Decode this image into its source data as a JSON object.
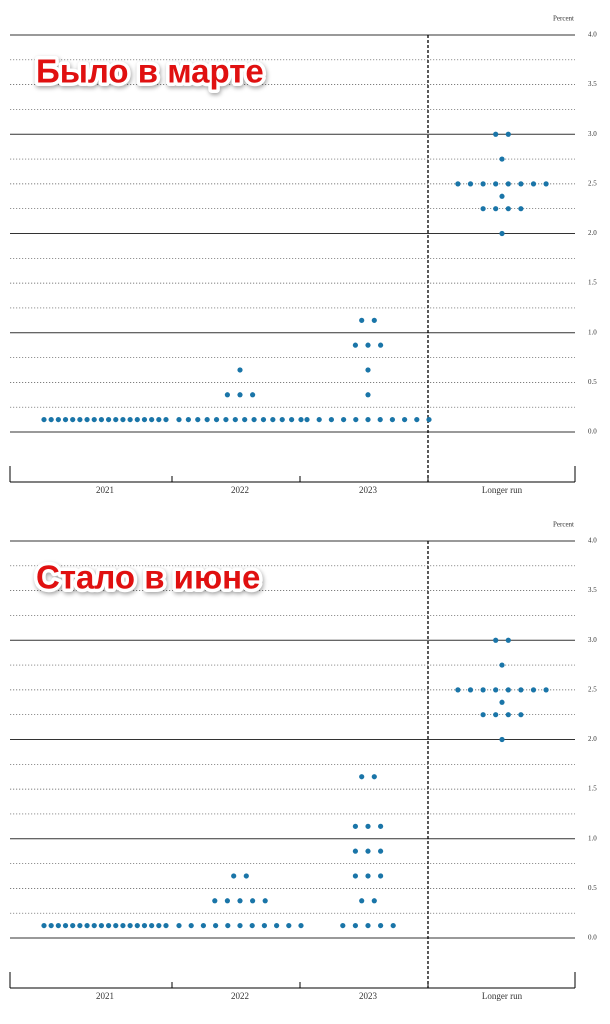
{
  "chart_data": [
    {
      "type": "dot",
      "title": "Было в марте",
      "ylabel": "Percent",
      "categories": [
        "2021",
        "2022",
        "2023",
        "Longer run"
      ],
      "values": [
        [
          0.125,
          0.125,
          0.125,
          0.125,
          0.125,
          0.125,
          0.125,
          0.125,
          0.125,
          0.125,
          0.125,
          0.125,
          0.125,
          0.125,
          0.125,
          0.125,
          0.125,
          0.125
        ],
        [
          0.125,
          0.125,
          0.125,
          0.125,
          0.125,
          0.125,
          0.125,
          0.125,
          0.125,
          0.125,
          0.125,
          0.125,
          0.125,
          0.125,
          0.375,
          0.375,
          0.375,
          0.625
        ],
        [
          0.125,
          0.125,
          0.125,
          0.125,
          0.125,
          0.125,
          0.125,
          0.125,
          0.125,
          0.125,
          0.125,
          0.375,
          0.625,
          0.875,
          0.875,
          0.875,
          1.125,
          1.125
        ],
        [
          2.0,
          2.25,
          2.25,
          2.25,
          2.25,
          2.375,
          2.5,
          2.5,
          2.5,
          2.5,
          2.5,
          2.5,
          2.5,
          2.5,
          2.75,
          3.0,
          3.0
        ]
      ],
      "color": "#1a75a8",
      "ylim": [
        0,
        4
      ],
      "yticks": [
        {
          "value": 0,
          "label": "0.0"
        },
        0.5,
        {
          "value": 1,
          "label": "1.0"
        },
        1.5,
        {
          "value": 2,
          "label": "2.0"
        },
        2.5,
        {
          "value": 3,
          "label": "3.0"
        },
        3.5,
        {
          "value": 4,
          "label": "4.0"
        }
      ],
      "minor_yticks": [
        0.25,
        0.75,
        1.25,
        1.75,
        2.25,
        2.75,
        3.25,
        3.75
      ],
      "grid": true
    },
    {
      "type": "dot",
      "title": "Стало в июне",
      "ylabel": "Percent",
      "categories": [
        "2021",
        "2022",
        "2023",
        "Longer run"
      ],
      "values": [
        [
          0.125,
          0.125,
          0.125,
          0.125,
          0.125,
          0.125,
          0.125,
          0.125,
          0.125,
          0.125,
          0.125,
          0.125,
          0.125,
          0.125,
          0.125,
          0.125,
          0.125,
          0.125
        ],
        [
          0.125,
          0.125,
          0.125,
          0.125,
          0.125,
          0.125,
          0.125,
          0.125,
          0.125,
          0.125,
          0.125,
          0.375,
          0.375,
          0.375,
          0.375,
          0.375,
          0.625,
          0.625
        ],
        [
          0.125,
          0.125,
          0.125,
          0.125,
          0.125,
          0.375,
          0.375,
          0.625,
          0.625,
          0.625,
          0.875,
          0.875,
          0.875,
          1.125,
          1.125,
          1.125,
          1.625,
          1.625
        ],
        [
          2.0,
          2.25,
          2.25,
          2.25,
          2.25,
          2.375,
          2.5,
          2.5,
          2.5,
          2.5,
          2.5,
          2.5,
          2.5,
          2.5,
          2.75,
          3.0,
          3.0
        ]
      ],
      "color": "#1a75a8",
      "ylim": [
        0,
        4
      ],
      "yticks": [
        {
          "value": 0,
          "label": "0.0"
        },
        0.5,
        {
          "value": 1,
          "label": "1.0"
        },
        1.5,
        {
          "value": 2,
          "label": "2.0"
        },
        2.5,
        {
          "value": 3,
          "label": "3.0"
        },
        3.5,
        {
          "value": 4,
          "label": "4.0"
        }
      ],
      "minor_yticks": [
        0.25,
        0.75,
        1.25,
        1.75,
        2.25,
        2.75,
        3.25,
        3.75
      ],
      "grid": true
    }
  ]
}
